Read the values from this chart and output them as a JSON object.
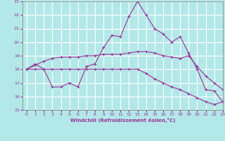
{
  "background_color": "#b3e8e8",
  "grid_color": "#ffffff",
  "line_color": "#993399",
  "xlabel": "Windchill (Refroidissement éolien,°C)",
  "xlim": [
    -0.5,
    23
  ],
  "ylim": [
    15,
    23
  ],
  "yticks": [
    15,
    16,
    17,
    18,
    19,
    20,
    21,
    22,
    23
  ],
  "xticks": [
    0,
    1,
    2,
    3,
    4,
    5,
    6,
    7,
    8,
    9,
    10,
    11,
    12,
    13,
    14,
    15,
    16,
    17,
    18,
    19,
    20,
    21,
    22,
    23
  ],
  "series1_x": [
    0,
    1,
    2,
    3,
    4,
    5,
    6,
    7,
    8,
    9,
    10,
    11,
    12,
    13,
    14,
    15,
    16,
    17,
    18,
    19,
    20,
    21,
    22,
    23
  ],
  "series1_y": [
    18.0,
    18.4,
    18.0,
    16.7,
    16.7,
    17.0,
    16.7,
    18.2,
    18.4,
    19.6,
    20.5,
    20.4,
    21.9,
    23.0,
    22.0,
    21.0,
    20.6,
    20.0,
    20.4,
    19.2,
    18.0,
    16.5,
    16.4,
    15.6
  ],
  "series2_x": [
    0,
    1,
    2,
    3,
    4,
    5,
    6,
    7,
    8,
    9,
    10,
    11,
    12,
    13,
    14,
    15,
    16,
    17,
    18,
    19,
    20,
    21,
    22,
    23
  ],
  "series2_y": [
    18.0,
    18.3,
    18.6,
    18.8,
    18.9,
    18.9,
    18.9,
    19.0,
    19.0,
    19.1,
    19.1,
    19.1,
    19.2,
    19.3,
    19.3,
    19.2,
    19.0,
    18.9,
    18.8,
    19.0,
    18.2,
    17.5,
    17.0,
    16.5
  ],
  "series3_x": [
    0,
    1,
    2,
    3,
    4,
    5,
    6,
    7,
    8,
    9,
    10,
    11,
    12,
    13,
    14,
    15,
    16,
    17,
    18,
    19,
    20,
    21,
    22,
    23
  ],
  "series3_y": [
    18.0,
    18.0,
    18.0,
    18.0,
    18.0,
    18.0,
    18.0,
    18.0,
    18.0,
    18.0,
    18.0,
    18.0,
    18.0,
    18.0,
    17.7,
    17.3,
    17.0,
    16.7,
    16.5,
    16.2,
    15.9,
    15.6,
    15.4,
    15.6
  ]
}
